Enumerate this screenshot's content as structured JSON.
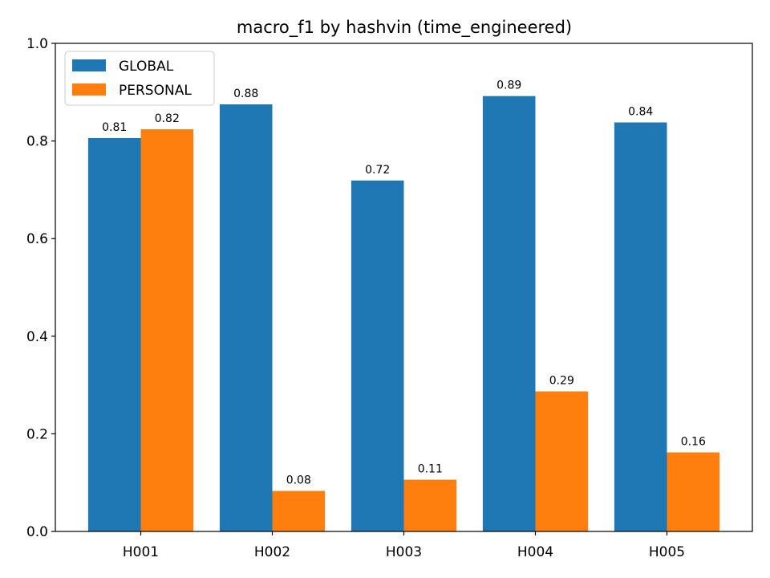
{
  "chart_data": {
    "type": "bar",
    "title": "macro_f1 by hashvin (time_engineered)",
    "xlabel": "",
    "ylabel": "",
    "categories": [
      "H001",
      "H002",
      "H003",
      "H004",
      "H005"
    ],
    "series": [
      {
        "name": "GLOBAL",
        "color": "#1f77b4",
        "values": [
          0.806,
          0.875,
          0.719,
          0.892,
          0.838
        ],
        "labels": [
          "0.81",
          "0.88",
          "0.72",
          "0.89",
          "0.84"
        ]
      },
      {
        "name": "PERSONAL",
        "color": "#ff7f0e",
        "values": [
          0.824,
          0.083,
          0.106,
          0.287,
          0.162
        ],
        "labels": [
          "0.82",
          "0.08",
          "0.11",
          "0.29",
          "0.16"
        ]
      }
    ],
    "ylim": [
      0,
      1.0
    ],
    "yticks": [
      "0.0",
      "0.2",
      "0.4",
      "0.6",
      "0.8",
      "1.0"
    ],
    "grid": false,
    "legend": "top-left"
  }
}
